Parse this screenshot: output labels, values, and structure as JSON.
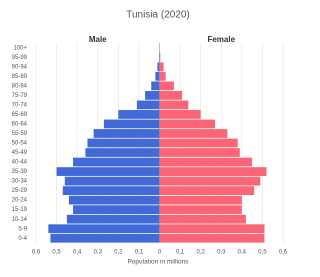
{
  "chart_data": {
    "type": "pyramid",
    "title": "Tunisia (2020)",
    "x_label": "Population in millions",
    "categories": [
      "0-4",
      "5-9",
      "10-14",
      "15-19",
      "20-24",
      "25-29",
      "30-34",
      "35-39",
      "40-44",
      "45-49",
      "50-54",
      "55-59",
      "60-64",
      "65-69",
      "70-74",
      "75-79",
      "80-84",
      "85-89",
      "90-94",
      "95-99",
      "100+"
    ],
    "series": [
      {
        "name": "Male",
        "color": "#4169d8",
        "values": [
          -0.53,
          -0.54,
          -0.45,
          -0.42,
          -0.44,
          -0.47,
          -0.46,
          -0.5,
          -0.42,
          -0.36,
          -0.35,
          -0.32,
          -0.27,
          -0.2,
          -0.11,
          -0.07,
          -0.04,
          -0.02,
          -0.01,
          -0.002,
          0
        ]
      },
      {
        "name": "Female",
        "color": "#fa6577",
        "values": [
          0.51,
          0.51,
          0.42,
          0.4,
          0.4,
          0.46,
          0.49,
          0.52,
          0.45,
          0.39,
          0.38,
          0.33,
          0.27,
          0.2,
          0.14,
          0.11,
          0.07,
          0.03,
          0.02,
          0.004,
          0
        ]
      }
    ],
    "xlim": [
      -0.6,
      0.6
    ],
    "xticks": [
      {
        "value": -0.6,
        "label": "0,6"
      },
      {
        "value": -0.5,
        "label": "0,5"
      },
      {
        "value": -0.4,
        "label": "0,4"
      },
      {
        "value": -0.3,
        "label": "0,3"
      },
      {
        "value": -0.2,
        "label": "0,2"
      },
      {
        "value": -0.1,
        "label": "0,1"
      },
      0,
      {
        "value": 0.1,
        "label": "0,1"
      },
      {
        "value": 0.2,
        "label": "0,2"
      },
      {
        "value": 0.3,
        "label": "0,3"
      },
      {
        "value": 0.4,
        "label": "0,4"
      },
      {
        "value": 0.5,
        "label": "0,5"
      },
      {
        "value": 0.6,
        "label": "0,6"
      }
    ],
    "grid": true
  }
}
